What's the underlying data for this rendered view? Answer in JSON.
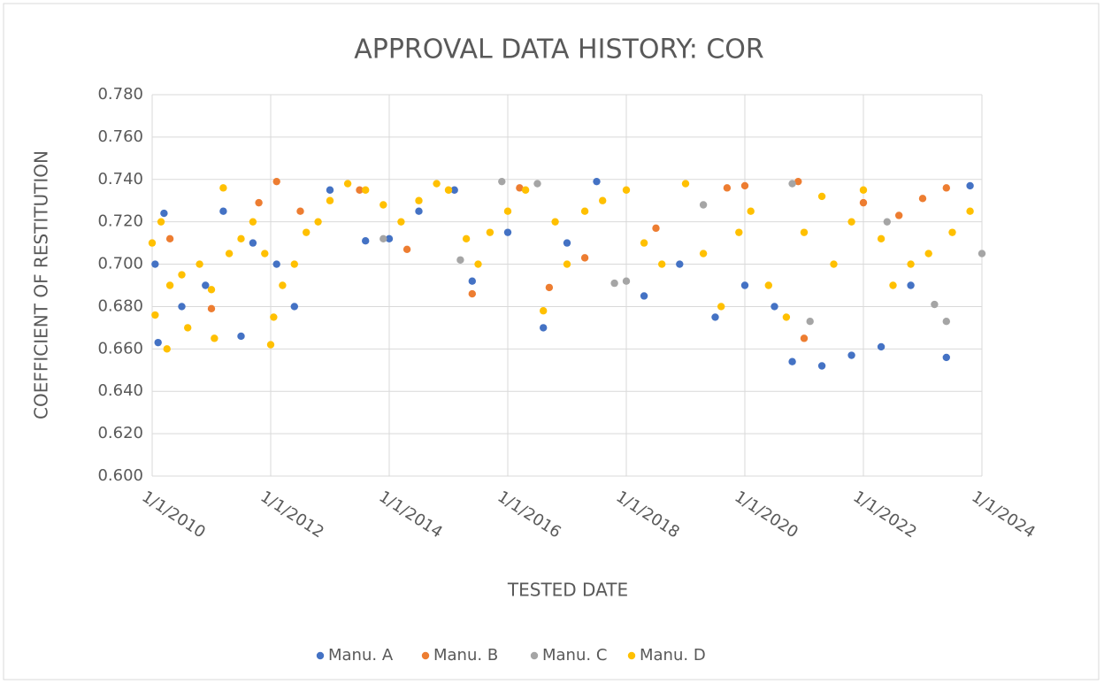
{
  "chart_data": {
    "type": "scatter",
    "title": "APPROVAL DATA HISTORY: COR",
    "x_label": "TESTED DATE",
    "y_label": "COEFFICIENT OF RESTITUTION",
    "xlim": [
      2010,
      2024
    ],
    "xticks": [
      {
        "value": 2010,
        "label": "1/1/2010"
      },
      {
        "value": 2012,
        "label": "1/1/2012"
      },
      {
        "value": 2014,
        "label": "1/1/2014"
      },
      {
        "value": 2016,
        "label": "1/1/2016"
      },
      {
        "value": 2018,
        "label": "1/1/2018"
      },
      {
        "value": 2020,
        "label": "1/1/2020"
      },
      {
        "value": 2022,
        "label": "1/1/2022"
      },
      {
        "value": 2024,
        "label": "1/1/2024"
      }
    ],
    "ylim": [
      0.6,
      0.78
    ],
    "yticks": [
      {
        "value": 0.6,
        "label": "0.600"
      },
      {
        "value": 0.62,
        "label": "0.620"
      },
      {
        "value": 0.64,
        "label": "0.640"
      },
      {
        "value": 0.66,
        "label": "0.660"
      },
      {
        "value": 0.68,
        "label": "0.680"
      },
      {
        "value": 0.7,
        "label": "0.700"
      },
      {
        "value": 0.72,
        "label": "0.720"
      },
      {
        "value": 0.74,
        "label": "0.740"
      },
      {
        "value": 0.76,
        "label": "0.760"
      },
      {
        "value": 0.78,
        "label": "0.780"
      }
    ],
    "grid": true,
    "legend": "bottom",
    "series": [
      {
        "name": "Manu. A",
        "color": "#4472c4",
        "x": [
          2010.05,
          2010.1,
          2010.2,
          2010.5,
          2010.9,
          2011.2,
          2011.5,
          2011.7,
          2012.1,
          2012.4,
          2013.0,
          2013.6,
          2014.0,
          2014.5,
          2015.1,
          2015.4,
          2016.0,
          2016.6,
          2017.0,
          2017.5,
          2018.3,
          2018.9,
          2019.5,
          2020.0,
          2020.5,
          2020.8,
          2021.3,
          2021.8,
          2022.3,
          2022.8,
          2023.4,
          2023.8
        ],
        "values": [
          0.7,
          0.663,
          0.724,
          0.68,
          0.69,
          0.725,
          0.666,
          0.71,
          0.7,
          0.68,
          0.735,
          0.711,
          0.712,
          0.725,
          0.735,
          0.692,
          0.715,
          0.67,
          0.71,
          0.739,
          0.685,
          0.7,
          0.675,
          0.69,
          0.68,
          0.654,
          0.652,
          0.657,
          0.661,
          0.69,
          0.656,
          0.737
        ]
      },
      {
        "name": "Manu. B",
        "color": "#ed7d31",
        "x": [
          2010.3,
          2011.0,
          2011.8,
          2012.1,
          2012.5,
          2013.5,
          2014.3,
          2015.4,
          2016.2,
          2016.7,
          2017.3,
          2018.5,
          2019.7,
          2020.0,
          2020.9,
          2021.0,
          2022.0,
          2022.6,
          2023.0,
          2023.4
        ],
        "values": [
          0.712,
          0.679,
          0.729,
          0.739,
          0.725,
          0.735,
          0.707,
          0.686,
          0.736,
          0.689,
          0.703,
          0.717,
          0.736,
          0.737,
          0.739,
          0.665,
          0.729,
          0.723,
          0.731,
          0.736
        ]
      },
      {
        "name": "Manu. C",
        "color": "#a5a5a5",
        "x": [
          2013.9,
          2015.2,
          2015.9,
          2016.5,
          2017.8,
          2018.0,
          2019.3,
          2020.8,
          2021.1,
          2022.4,
          2023.2,
          2023.4,
          2024.0
        ],
        "values": [
          0.712,
          0.702,
          0.739,
          0.738,
          0.691,
          0.692,
          0.728,
          0.738,
          0.673,
          0.72,
          0.681,
          0.673,
          0.705
        ]
      },
      {
        "name": "Manu. D",
        "color": "#ffc000",
        "x": [
          2010.0,
          2010.05,
          2010.15,
          2010.25,
          2010.3,
          2010.5,
          2010.6,
          2010.8,
          2011.0,
          2011.05,
          2011.2,
          2011.3,
          2011.5,
          2011.7,
          2011.9,
          2012.0,
          2012.05,
          2012.2,
          2012.4,
          2012.6,
          2012.8,
          2013.0,
          2013.3,
          2013.6,
          2013.9,
          2014.2,
          2014.5,
          2014.8,
          2015.0,
          2015.3,
          2015.5,
          2015.7,
          2016.0,
          2016.3,
          2016.6,
          2016.8,
          2017.0,
          2017.3,
          2017.6,
          2018.0,
          2018.3,
          2018.6,
          2019.0,
          2019.3,
          2019.6,
          2019.9,
          2020.1,
          2020.4,
          2020.7,
          2021.0,
          2021.3,
          2021.5,
          2021.8,
          2022.0,
          2022.3,
          2022.5,
          2022.8,
          2023.1,
          2023.5,
          2023.8
        ],
        "values": [
          0.71,
          0.676,
          0.72,
          0.66,
          0.69,
          0.695,
          0.67,
          0.7,
          0.688,
          0.665,
          0.736,
          0.705,
          0.712,
          0.72,
          0.705,
          0.662,
          0.675,
          0.69,
          0.7,
          0.715,
          0.72,
          0.73,
          0.738,
          0.735,
          0.728,
          0.72,
          0.73,
          0.738,
          0.735,
          0.712,
          0.7,
          0.715,
          0.725,
          0.735,
          0.678,
          0.72,
          0.7,
          0.725,
          0.73,
          0.735,
          0.71,
          0.7,
          0.738,
          0.705,
          0.68,
          0.715,
          0.725,
          0.69,
          0.675,
          0.715,
          0.732,
          0.7,
          0.72,
          0.735,
          0.712,
          0.69,
          0.7,
          0.705,
          0.715,
          0.725
        ]
      }
    ]
  }
}
